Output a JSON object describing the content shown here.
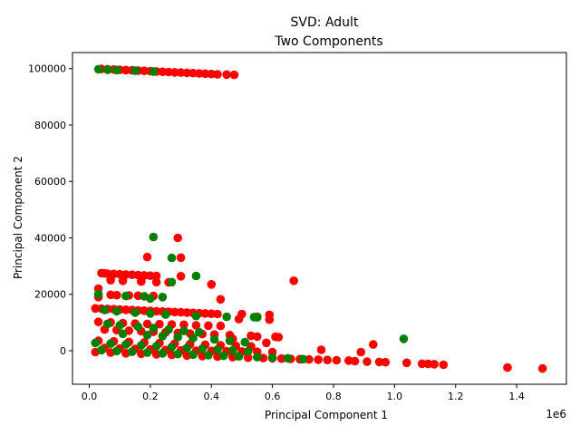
{
  "chart_data": {
    "type": "scatter",
    "title_line1": "SVD: Adult",
    "title_line2": "Two Components",
    "xlabel": "Principal Component 1",
    "ylabel": "Principal Component 2",
    "x_offset_label": "1e6",
    "xlim": [
      -0.055,
      1.563
    ],
    "ylim": [
      -11900,
      105700
    ],
    "xticks": [
      0.0,
      0.2,
      0.4,
      0.6,
      0.8,
      1.0,
      1.2,
      1.4
    ],
    "xtick_labels": [
      "0.0",
      "0.2",
      "0.4",
      "0.6",
      "0.8",
      "1.0",
      "1.2",
      "1.4"
    ],
    "yticks": [
      0,
      20000,
      40000,
      60000,
      80000,
      100000
    ],
    "ytick_labels": [
      "0",
      "20000",
      "40000",
      "60000",
      "80000",
      "100000"
    ],
    "grid": false,
    "legend": "none",
    "series": [
      {
        "color": "#ff0000",
        "points": [
          [
            0.04,
            99900
          ],
          [
            0.06,
            99800
          ],
          [
            0.08,
            99700
          ],
          [
            0.1,
            99600
          ],
          [
            0.12,
            99500
          ],
          [
            0.14,
            99400
          ],
          [
            0.16,
            99300
          ],
          [
            0.18,
            99200
          ],
          [
            0.2,
            99100
          ],
          [
            0.22,
            99000
          ],
          [
            0.24,
            98900
          ],
          [
            0.26,
            98800
          ],
          [
            0.28,
            98700
          ],
          [
            0.3,
            98600
          ],
          [
            0.32,
            98500
          ],
          [
            0.34,
            98400
          ],
          [
            0.36,
            98300
          ],
          [
            0.38,
            98200
          ],
          [
            0.4,
            98100
          ],
          [
            0.42,
            98000
          ],
          [
            0.45,
            97900
          ],
          [
            0.475,
            97800
          ],
          [
            0.19,
            33200
          ],
          [
            0.3,
            33000
          ],
          [
            0.29,
            40000
          ],
          [
            0.04,
            27500
          ],
          [
            0.05,
            27400
          ],
          [
            0.06,
            27300
          ],
          [
            0.08,
            27200
          ],
          [
            0.1,
            27100
          ],
          [
            0.12,
            27000
          ],
          [
            0.14,
            26900
          ],
          [
            0.16,
            26800
          ],
          [
            0.18,
            26700
          ],
          [
            0.2,
            26600
          ],
          [
            0.22,
            26500
          ],
          [
            0.3,
            26400
          ],
          [
            0.07,
            25000
          ],
          [
            0.11,
            24800
          ],
          [
            0.17,
            24500
          ],
          [
            0.22,
            24300
          ],
          [
            0.26,
            24200
          ],
          [
            0.4,
            23500
          ],
          [
            0.67,
            24800
          ],
          [
            0.03,
            22000
          ],
          [
            0.07,
            19800
          ],
          [
            0.09,
            19700
          ],
          [
            0.13,
            19600
          ],
          [
            0.16,
            19500
          ],
          [
            0.21,
            19400
          ],
          [
            0.43,
            18200
          ],
          [
            0.03,
            19000
          ],
          [
            0.02,
            15000
          ],
          [
            0.04,
            14900
          ],
          [
            0.06,
            14800
          ],
          [
            0.08,
            14700
          ],
          [
            0.1,
            14600
          ],
          [
            0.12,
            14500
          ],
          [
            0.14,
            14400
          ],
          [
            0.16,
            14300
          ],
          [
            0.18,
            14200
          ],
          [
            0.2,
            14100
          ],
          [
            0.22,
            14000
          ],
          [
            0.24,
            13900
          ],
          [
            0.26,
            13800
          ],
          [
            0.28,
            13700
          ],
          [
            0.3,
            13600
          ],
          [
            0.32,
            13500
          ],
          [
            0.34,
            13400
          ],
          [
            0.36,
            13300
          ],
          [
            0.38,
            13200
          ],
          [
            0.4,
            13100
          ],
          [
            0.42,
            13000
          ],
          [
            0.5,
            13000
          ],
          [
            0.59,
            12700
          ],
          [
            0.59,
            11000
          ],
          [
            0.55,
            12000
          ],
          [
            0.49,
            11200
          ],
          [
            0.03,
            10200
          ],
          [
            0.07,
            10000
          ],
          [
            0.11,
            9800
          ],
          [
            0.15,
            9600
          ],
          [
            0.19,
            9500
          ],
          [
            0.23,
            9400
          ],
          [
            0.27,
            9300
          ],
          [
            0.31,
            9200
          ],
          [
            0.35,
            9000
          ],
          [
            0.39,
            8900
          ],
          [
            0.43,
            8800
          ],
          [
            0.05,
            7500
          ],
          [
            0.09,
            7300
          ],
          [
            0.13,
            7100
          ],
          [
            0.17,
            6900
          ],
          [
            0.21,
            6700
          ],
          [
            0.25,
            6500
          ],
          [
            0.29,
            6300
          ],
          [
            0.33,
            6100
          ],
          [
            0.37,
            5900
          ],
          [
            0.41,
            5700
          ],
          [
            0.46,
            5500
          ],
          [
            0.53,
            5300
          ],
          [
            0.55,
            5000
          ],
          [
            0.61,
            4900
          ],
          [
            0.62,
            4800
          ],
          [
            0.47,
            4200
          ],
          [
            0.03,
            3500
          ],
          [
            0.08,
            3300
          ],
          [
            0.13,
            3100
          ],
          [
            0.18,
            2900
          ],
          [
            0.23,
            2700
          ],
          [
            0.28,
            2500
          ],
          [
            0.33,
            2300
          ],
          [
            0.38,
            2100
          ],
          [
            0.43,
            1900
          ],
          [
            0.48,
            1700
          ],
          [
            0.53,
            1500
          ],
          [
            0.58,
            2800
          ],
          [
            0.05,
            1000
          ],
          [
            0.1,
            800
          ],
          [
            0.15,
            600
          ],
          [
            0.2,
            400
          ],
          [
            0.25,
            200
          ],
          [
            0.3,
            100
          ],
          [
            0.35,
            0
          ],
          [
            0.4,
            -100
          ],
          [
            0.45,
            -200
          ],
          [
            0.5,
            -300
          ],
          [
            0.55,
            -400
          ],
          [
            0.6,
            -500
          ],
          [
            0.93,
            2200
          ],
          [
            0.89,
            -500
          ],
          [
            0.76,
            300
          ],
          [
            0.02,
            -500
          ],
          [
            0.07,
            -700
          ],
          [
            0.12,
            -900
          ],
          [
            0.17,
            -1100
          ],
          [
            0.22,
            -1300
          ],
          [
            0.27,
            -1500
          ],
          [
            0.32,
            -1700
          ],
          [
            0.37,
            -1900
          ],
          [
            0.42,
            -2100
          ],
          [
            0.47,
            -2300
          ],
          [
            0.52,
            -2500
          ],
          [
            0.57,
            -2600
          ],
          [
            0.6,
            -2700
          ],
          [
            0.63,
            -2800
          ],
          [
            0.66,
            -2900
          ],
          [
            0.69,
            -3000
          ],
          [
            0.72,
            -3100
          ],
          [
            0.75,
            -3200
          ],
          [
            0.78,
            -3300
          ],
          [
            0.81,
            -3400
          ],
          [
            0.85,
            -3500
          ],
          [
            0.87,
            -3700
          ],
          [
            0.91,
            -3900
          ],
          [
            0.95,
            -4000
          ],
          [
            0.97,
            -4100
          ],
          [
            1.04,
            -4300
          ],
          [
            1.09,
            -4600
          ],
          [
            1.11,
            -4700
          ],
          [
            1.13,
            -4800
          ],
          [
            1.16,
            -5000
          ],
          [
            1.37,
            -6000
          ],
          [
            1.485,
            -6300
          ]
        ]
      },
      {
        "color": "#008000",
        "points": [
          [
            0.03,
            99800
          ],
          [
            0.06,
            99600
          ],
          [
            0.09,
            99500
          ],
          [
            0.15,
            99300
          ],
          [
            0.21,
            99000
          ],
          [
            0.21,
            40300
          ],
          [
            0.27,
            32900
          ],
          [
            0.35,
            26500
          ],
          [
            0.27,
            24300
          ],
          [
            0.03,
            20000
          ],
          [
            0.12,
            19400
          ],
          [
            0.18,
            19300
          ],
          [
            0.24,
            19000
          ],
          [
            0.2,
            18500
          ],
          [
            0.05,
            14400
          ],
          [
            0.09,
            14000
          ],
          [
            0.15,
            13500
          ],
          [
            0.2,
            13200
          ],
          [
            0.25,
            12800
          ],
          [
            0.35,
            12300
          ],
          [
            0.45,
            12000
          ],
          [
            0.54,
            11900
          ],
          [
            0.55,
            11800
          ],
          [
            1.03,
            4200
          ],
          [
            0.06,
            9500
          ],
          [
            0.1,
            9000
          ],
          [
            0.16,
            8500
          ],
          [
            0.21,
            8000
          ],
          [
            0.26,
            7500
          ],
          [
            0.31,
            7000
          ],
          [
            0.36,
            6500
          ],
          [
            0.11,
            6000
          ],
          [
            0.19,
            5500
          ],
          [
            0.24,
            5200
          ],
          [
            0.29,
            4800
          ],
          [
            0.34,
            4500
          ],
          [
            0.41,
            4000
          ],
          [
            0.46,
            3500
          ],
          [
            0.51,
            3000
          ],
          [
            0.02,
            2800
          ],
          [
            0.07,
            2500
          ],
          [
            0.12,
            2200
          ],
          [
            0.17,
            1900
          ],
          [
            0.22,
            1600
          ],
          [
            0.27,
            1300
          ],
          [
            0.32,
            1000
          ],
          [
            0.37,
            700
          ],
          [
            0.42,
            400
          ],
          [
            0.47,
            100
          ],
          [
            0.52,
            -200
          ],
          [
            0.04,
            200
          ],
          [
            0.09,
            -100
          ],
          [
            0.14,
            -400
          ],
          [
            0.19,
            -700
          ],
          [
            0.24,
            -900
          ],
          [
            0.29,
            -1200
          ],
          [
            0.34,
            -1400
          ],
          [
            0.39,
            -1600
          ],
          [
            0.44,
            -1800
          ],
          [
            0.49,
            -2000
          ],
          [
            0.55,
            -2300
          ],
          [
            0.6,
            -2500
          ],
          [
            0.65,
            -2700
          ],
          [
            0.7,
            -3000
          ]
        ]
      }
    ]
  }
}
